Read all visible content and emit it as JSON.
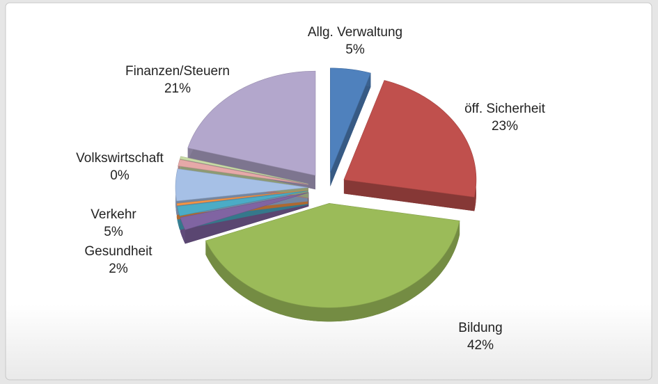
{
  "chart_data": {
    "type": "pie",
    "categories": [
      "Allg. Verwaltung",
      "öff. Sicherheit",
      "Bildung",
      "Gesundheit",
      null,
      null,
      "Verkehr",
      null,
      "Volkswirtschaft",
      "Finanzen/Steuern"
    ],
    "values": [
      5,
      23,
      42,
      2,
      1.5,
      0.3,
      5,
      1,
      0.4,
      21
    ],
    "value_labels": [
      "5%",
      "23%",
      "42%",
      "2%",
      null,
      null,
      "5%",
      null,
      "0%",
      "21%"
    ],
    "colors": [
      "#4f81bd",
      "#c0504d",
      "#9bbb59",
      "#8064a2",
      "#4bacc6",
      "#f79646",
      "#a6c0e6",
      "#e6a9a8",
      "#c9dca6",
      "#b3a7cc"
    ],
    "exploded": true,
    "three_d": true
  }
}
